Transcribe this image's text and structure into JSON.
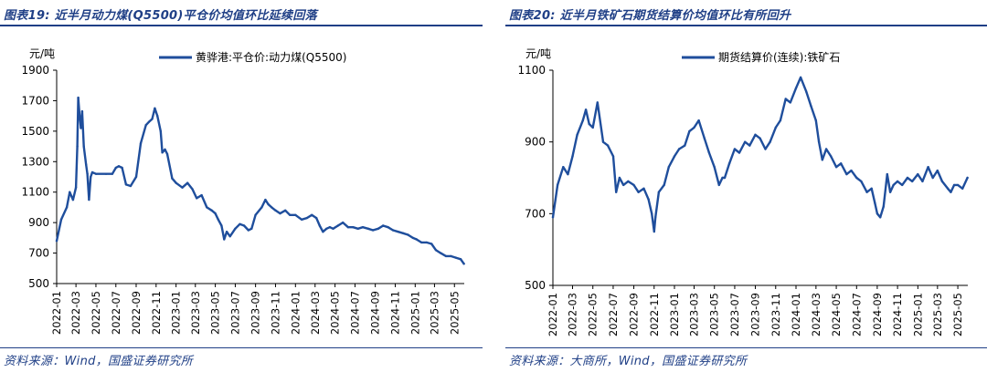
{
  "chart_data": [
    {
      "type": "line",
      "figure_label": "图表19:",
      "title": "近半月动力煤(Q5500)平仓价均值环比延续回落",
      "ylabel": "元/吨",
      "ylim": [
        500,
        1900
      ],
      "yticks": [
        500,
        700,
        900,
        1100,
        1300,
        1500,
        1700,
        1900
      ],
      "xticks": [
        "2022-01",
        "2022-03",
        "2022-05",
        "2022-07",
        "2022-09",
        "2022-11",
        "2023-01",
        "2023-03",
        "2023-05",
        "2023-07",
        "2023-09",
        "2023-11",
        "2024-01",
        "2024-03",
        "2024-05",
        "2024-07",
        "2024-09",
        "2024-11",
        "2025-01",
        "2025-03",
        "2025-05"
      ],
      "x_range": [
        "2022-01-01",
        "2025-05-31"
      ],
      "legend_position": "top-center",
      "source": "资料来源：Wind，国盛证券研究所",
      "series": [
        {
          "name": "黄骅港:平仓价:动力煤(Q5500)",
          "color": "#1f4e9c",
          "x": [
            "2022-01-01",
            "2022-01-15",
            "2022-02-01",
            "2022-02-10",
            "2022-02-20",
            "2022-03-01",
            "2022-03-05",
            "2022-03-08",
            "2022-03-12",
            "2022-03-16",
            "2022-03-20",
            "2022-03-25",
            "2022-04-01",
            "2022-04-05",
            "2022-04-10",
            "2022-04-15",
            "2022-04-20",
            "2022-05-01",
            "2022-06-01",
            "2022-06-20",
            "2022-07-01",
            "2022-07-10",
            "2022-07-20",
            "2022-08-01",
            "2022-08-15",
            "2022-09-01",
            "2022-09-15",
            "2022-10-01",
            "2022-10-10",
            "2022-10-20",
            "2022-10-28",
            "2022-11-05",
            "2022-11-15",
            "2022-11-20",
            "2022-11-28",
            "2022-12-05",
            "2022-12-20",
            "2023-01-01",
            "2023-01-20",
            "2023-02-05",
            "2023-02-20",
            "2023-03-05",
            "2023-03-20",
            "2023-04-05",
            "2023-04-20",
            "2023-05-01",
            "2023-05-10",
            "2023-05-20",
            "2023-05-28",
            "2023-06-05",
            "2023-06-15",
            "2023-07-01",
            "2023-07-15",
            "2023-07-28",
            "2023-08-10",
            "2023-08-20",
            "2023-09-01",
            "2023-09-20",
            "2023-10-01",
            "2023-10-10",
            "2023-10-20",
            "2023-11-01",
            "2023-11-15",
            "2023-12-01",
            "2023-12-15",
            "2024-01-01",
            "2024-01-20",
            "2024-02-05",
            "2024-02-20",
            "2024-03-05",
            "2024-03-15",
            "2024-03-25",
            "2024-04-05",
            "2024-04-15",
            "2024-04-25",
            "2024-05-10",
            "2024-05-25",
            "2024-06-10",
            "2024-06-25",
            "2024-07-10",
            "2024-07-25",
            "2024-08-10",
            "2024-08-25",
            "2024-09-10",
            "2024-09-25",
            "2024-10-10",
            "2024-10-25",
            "2024-11-10",
            "2024-11-25",
            "2024-12-10",
            "2024-12-25",
            "2025-01-05",
            "2025-01-20",
            "2025-02-05",
            "2025-02-20",
            "2025-03-05",
            "2025-03-20",
            "2025-04-05",
            "2025-04-20",
            "2025-05-05",
            "2025-05-20",
            "2025-05-30"
          ],
          "y": [
            780,
            920,
            1000,
            1100,
            1050,
            1130,
            1400,
            1720,
            1600,
            1520,
            1630,
            1400,
            1280,
            1220,
            1050,
            1200,
            1230,
            1220,
            1220,
            1220,
            1260,
            1270,
            1260,
            1150,
            1140,
            1200,
            1420,
            1540,
            1560,
            1580,
            1650,
            1600,
            1500,
            1360,
            1380,
            1350,
            1190,
            1160,
            1130,
            1160,
            1120,
            1060,
            1080,
            1000,
            980,
            960,
            920,
            880,
            790,
            840,
            810,
            860,
            890,
            880,
            850,
            860,
            950,
            1000,
            1050,
            1020,
            1000,
            980,
            960,
            980,
            950,
            950,
            920,
            930,
            950,
            930,
            880,
            840,
            860,
            870,
            860,
            880,
            900,
            870,
            870,
            860,
            870,
            860,
            850,
            860,
            880,
            870,
            850,
            840,
            830,
            820,
            800,
            790,
            770,
            770,
            760,
            720,
            700,
            680,
            680,
            670,
            660,
            630
          ]
        }
      ]
    },
    {
      "type": "line",
      "figure_label": "图表20:",
      "title": "近半月铁矿石期货结算价均值环比有所回升",
      "ylabel": "元/吨",
      "ylim": [
        500,
        1100
      ],
      "yticks": [
        500,
        700,
        900,
        1100
      ],
      "xticks": [
        "2022-01",
        "2022-03",
        "2022-05",
        "2022-07",
        "2022-09",
        "2022-11",
        "2023-01",
        "2023-03",
        "2023-05",
        "2023-07",
        "2023-09",
        "2023-11",
        "2024-01",
        "2024-03",
        "2024-05",
        "2024-07",
        "2024-09",
        "2024-11",
        "2025-01",
        "2025-03",
        "2025-05"
      ],
      "x_range": [
        "2022-01-01",
        "2025-05-31"
      ],
      "legend_position": "top-center",
      "source": "资料来源：大商所，Wind，国盛证券研究所",
      "series": [
        {
          "name": "期货结算价(连续):铁矿石",
          "color": "#1f4e9c",
          "x": [
            "2022-01-01",
            "2022-01-15",
            "2022-02-01",
            "2022-02-15",
            "2022-03-01",
            "2022-03-15",
            "2022-04-01",
            "2022-04-10",
            "2022-04-20",
            "2022-05-01",
            "2022-05-15",
            "2022-06-01",
            "2022-06-15",
            "2022-07-01",
            "2022-07-10",
            "2022-07-20",
            "2022-08-01",
            "2022-08-15",
            "2022-09-01",
            "2022-09-15",
            "2022-10-01",
            "2022-10-15",
            "2022-10-25",
            "2022-11-01",
            "2022-11-05",
            "2022-11-15",
            "2022-12-01",
            "2022-12-15",
            "2023-01-01",
            "2023-01-15",
            "2023-02-01",
            "2023-02-15",
            "2023-03-01",
            "2023-03-15",
            "2023-04-01",
            "2023-04-15",
            "2023-05-01",
            "2023-05-15",
            "2023-05-25",
            "2023-06-01",
            "2023-06-15",
            "2023-07-01",
            "2023-07-15",
            "2023-08-01",
            "2023-08-15",
            "2023-09-01",
            "2023-09-15",
            "2023-10-01",
            "2023-10-15",
            "2023-11-01",
            "2023-11-15",
            "2023-12-01",
            "2023-12-15",
            "2024-01-01",
            "2024-01-15",
            "2024-02-01",
            "2024-02-15",
            "2024-03-01",
            "2024-03-10",
            "2024-03-20",
            "2024-04-01",
            "2024-04-15",
            "2024-05-01",
            "2024-05-15",
            "2024-06-01",
            "2024-06-15",
            "2024-07-01",
            "2024-07-15",
            "2024-08-01",
            "2024-08-15",
            "2024-08-25",
            "2024-09-01",
            "2024-09-10",
            "2024-09-20",
            "2024-10-01",
            "2024-10-10",
            "2024-10-20",
            "2024-11-01",
            "2024-11-15",
            "2024-12-01",
            "2024-12-15",
            "2025-01-01",
            "2025-01-15",
            "2025-02-01",
            "2025-02-15",
            "2025-03-01",
            "2025-03-15",
            "2025-04-01",
            "2025-04-10",
            "2025-04-20",
            "2025-05-01",
            "2025-05-15",
            "2025-05-30"
          ],
          "y": [
            690,
            780,
            830,
            810,
            860,
            920,
            960,
            990,
            950,
            940,
            1010,
            900,
            890,
            860,
            760,
            800,
            780,
            790,
            780,
            760,
            770,
            740,
            700,
            650,
            690,
            760,
            780,
            830,
            860,
            880,
            890,
            930,
            940,
            960,
            910,
            870,
            830,
            780,
            800,
            800,
            840,
            880,
            870,
            900,
            890,
            920,
            910,
            880,
            900,
            940,
            960,
            1020,
            1010,
            1050,
            1080,
            1040,
            1000,
            960,
            900,
            850,
            880,
            860,
            830,
            840,
            810,
            820,
            800,
            790,
            760,
            770,
            730,
            700,
            690,
            720,
            810,
            760,
            780,
            790,
            780,
            800,
            790,
            810,
            790,
            830,
            800,
            820,
            790,
            770,
            760,
            780,
            780,
            770,
            800
          ]
        }
      ]
    }
  ]
}
